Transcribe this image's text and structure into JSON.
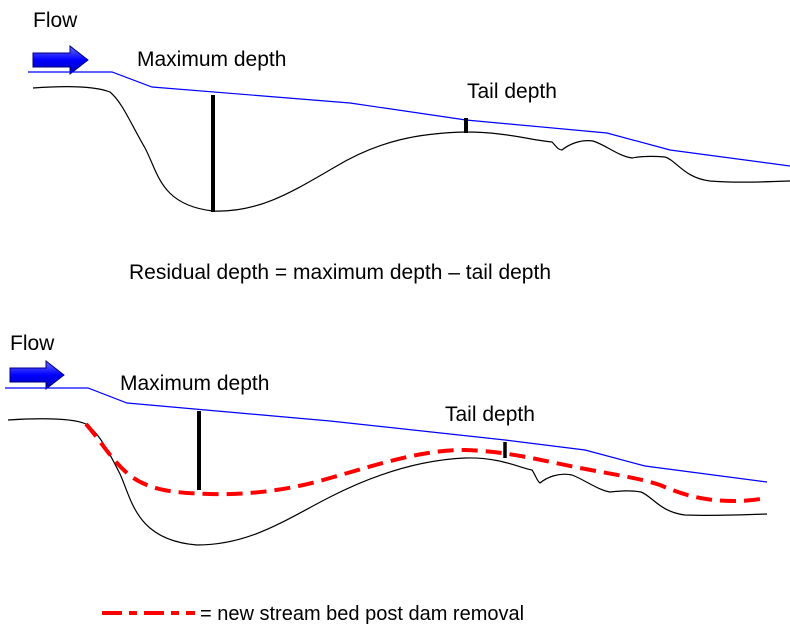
{
  "colors": {
    "water_surface": "#0000ff",
    "stream_bed": "#000000",
    "new_bed": "#ff0000",
    "arrow_fill": "#0000ff",
    "depth_marker": "#000000"
  },
  "top_panel": {
    "flow_label": "Flow",
    "max_depth_label": "Maximum depth",
    "tail_depth_label": "Tail depth"
  },
  "formula": "Residual depth = maximum depth – tail depth",
  "bottom_panel": {
    "flow_label": "Flow",
    "max_depth_label": "Maximum depth",
    "tail_depth_label": "Tail depth"
  },
  "legend": {
    "text": "= new stream bed post dam removal",
    "symbol": "red-dashed-line"
  }
}
